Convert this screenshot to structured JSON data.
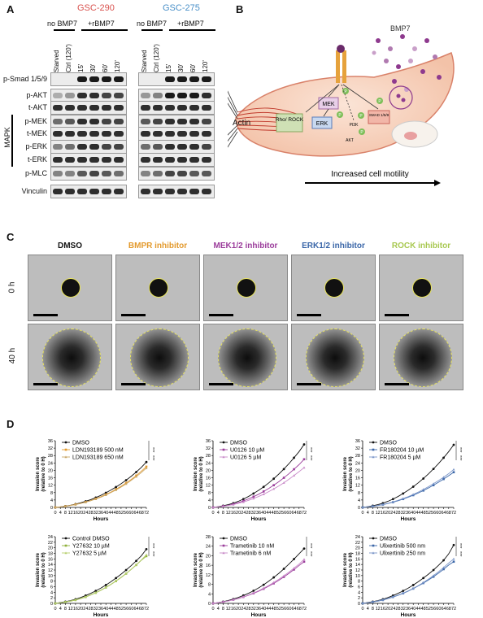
{
  "panels": {
    "a": "A",
    "b": "B",
    "c": "C",
    "d": "D"
  },
  "blot": {
    "cell_lines": [
      {
        "name": "GSC-290",
        "color": "#d9534f"
      },
      {
        "name": "GSC-275",
        "color": "#4a90c8"
      }
    ],
    "group_no": "no BMP7",
    "group_plus": "+rBMP7",
    "lanes": [
      "Starved",
      "Ctrl (120')",
      "15'",
      "30'",
      "60'",
      "120'"
    ],
    "rows": [
      "p-Smad 1/5/9",
      "p-AKT",
      "t-AKT",
      "p-MEK",
      "t-MEK",
      "p-ERK",
      "t-ERK",
      "p-MLC",
      "Vinculin"
    ],
    "mapk_label": "MAPK"
  },
  "schematic": {
    "ligand": "BMP7",
    "actin": "Actin",
    "rho": "Rho/ ROCK",
    "mek": "MEK",
    "erk": "ERK",
    "pi3k": "PI3K",
    "akt": "AKT",
    "smad": "SMAD 1/5/9",
    "p": "P",
    "caption": "Increased cell motility"
  },
  "spheroid": {
    "conditions": [
      {
        "name": "DMSO",
        "color": "#111111"
      },
      {
        "name": "BMPR inhibitor",
        "color": "#e39a2d"
      },
      {
        "name": "MEK1/2 inhibitor",
        "color": "#9b3d9b"
      },
      {
        "name": "ERK1/2 inhibitor",
        "color": "#3a66a8"
      },
      {
        "name": "ROCK inhibitor",
        "color": "#a8c850"
      }
    ],
    "times": [
      "0 h",
      "40 h"
    ]
  },
  "chart_data": [
    {
      "type": "line",
      "ylabel": "Invasion score (relative to 0 H)",
      "xlabel": "Hours",
      "ylim": [
        0,
        36
      ],
      "yticks": [
        0,
        4,
        8,
        12,
        16,
        20,
        24,
        28,
        32,
        36
      ],
      "x": [
        0,
        4,
        8,
        12,
        16,
        20,
        24,
        28,
        32,
        36,
        40,
        44,
        48,
        52,
        56,
        60,
        64,
        68,
        72
      ],
      "series": [
        {
          "name": "DMSO",
          "color": "#111111",
          "marker": "circle",
          "values": [
            0,
            0.3,
            0.7,
            1.2,
            1.8,
            2.5,
            3.3,
            4.2,
            5.3,
            6.5,
            7.9,
            9.4,
            11,
            12.8,
            14.7,
            16.8,
            19.1,
            21.6,
            24.5
          ]
        },
        {
          "name": "LDN193189 500 nM",
          "color": "#e39a2d",
          "marker": "square",
          "values": [
            0,
            0.3,
            0.6,
            1.1,
            1.6,
            2.2,
            2.9,
            3.7,
            4.7,
            5.8,
            7,
            8.3,
            9.8,
            11.4,
            13.2,
            15.1,
            17.2,
            19.5,
            22
          ]
        },
        {
          "name": "LDN193189 650 nM",
          "color": "#c9a86a",
          "marker": "triangle",
          "values": [
            0,
            0.3,
            0.6,
            1,
            1.5,
            2.1,
            2.8,
            3.6,
            4.5,
            5.5,
            6.7,
            8,
            9.4,
            11,
            12.7,
            14.6,
            16.6,
            18.8,
            21.2
          ]
        }
      ],
      "significance": [
        "***",
        "***"
      ]
    },
    {
      "type": "line",
      "ylabel": "Invasion score (relative to 0 H)",
      "xlabel": "Hours",
      "ylim": [
        0,
        36
      ],
      "yticks": [
        0,
        4,
        8,
        12,
        16,
        20,
        24,
        28,
        32,
        36
      ],
      "x": [
        0,
        4,
        8,
        12,
        16,
        20,
        24,
        28,
        32,
        36,
        40,
        44,
        48,
        52,
        56,
        60,
        64,
        68,
        72
      ],
      "series": [
        {
          "name": "DMSO",
          "color": "#111111",
          "marker": "circle",
          "values": [
            0,
            0.4,
            0.9,
            1.5,
            2.3,
            3.3,
            4.5,
            5.9,
            7.5,
            9.2,
            11.1,
            13.2,
            15.5,
            18,
            20.7,
            23.6,
            26.8,
            30.1,
            34
          ]
        },
        {
          "name": "U0126 10 µM",
          "color": "#9b3d9b",
          "marker": "square",
          "values": [
            0,
            0.3,
            0.7,
            1.2,
            1.8,
            2.6,
            3.5,
            4.6,
            5.8,
            7.1,
            8.6,
            10.2,
            12,
            13.9,
            16,
            18.2,
            20.6,
            23.1,
            26
          ]
        },
        {
          "name": "U0126 5 µM",
          "color": "#c98ac9",
          "marker": "triangle",
          "values": [
            0,
            0.3,
            0.6,
            1,
            1.5,
            2.2,
            2.9,
            3.8,
            4.8,
            5.9,
            7.1,
            8.5,
            10,
            11.6,
            13.3,
            15.2,
            17.2,
            19.3,
            21.5
          ]
        }
      ],
      "significance": [
        "***",
        "***"
      ]
    },
    {
      "type": "line",
      "ylabel": "Invasion score (relative to 0 H)",
      "xlabel": "Hours",
      "ylim": [
        0,
        36
      ],
      "yticks": [
        0,
        4,
        8,
        12,
        16,
        20,
        24,
        28,
        32,
        36
      ],
      "x": [
        0,
        4,
        8,
        12,
        16,
        20,
        24,
        28,
        32,
        36,
        40,
        44,
        48,
        52,
        56,
        60,
        64,
        68,
        72
      ],
      "series": [
        {
          "name": "DMSO",
          "color": "#111111",
          "marker": "circle",
          "values": [
            0,
            0.4,
            0.9,
            1.5,
            2.3,
            3.3,
            4.5,
            5.9,
            7.5,
            9.3,
            11.2,
            13.3,
            15.6,
            18.1,
            20.8,
            23.7,
            26.8,
            30.1,
            33.8
          ]
        },
        {
          "name": "FR180204 10 µM",
          "color": "#3a66a8",
          "marker": "square",
          "values": [
            0,
            0.3,
            0.6,
            1,
            1.5,
            2.1,
            2.8,
            3.6,
            4.5,
            5.5,
            6.6,
            7.8,
            9.1,
            10.5,
            12,
            13.6,
            15.3,
            17.1,
            19
          ]
        },
        {
          "name": "FR180204 5 µM",
          "color": "#7a95c8",
          "marker": "triangle",
          "values": [
            0,
            0.3,
            0.6,
            1.1,
            1.6,
            2.2,
            3,
            3.8,
            4.8,
            5.8,
            7,
            8.3,
            9.7,
            11.2,
            12.8,
            14.5,
            16.3,
            18.2,
            20.5
          ]
        }
      ],
      "significance": [
        "***",
        "***"
      ]
    },
    {
      "type": "line",
      "ylabel": "Invasion score (relative to 0 H)",
      "xlabel": "Hours",
      "ylim": [
        0,
        24
      ],
      "yticks": [
        0,
        2,
        4,
        6,
        8,
        10,
        12,
        14,
        16,
        18,
        20,
        22,
        24
      ],
      "x": [
        0,
        4,
        8,
        12,
        16,
        20,
        24,
        28,
        32,
        36,
        40,
        44,
        48,
        52,
        56,
        60,
        64,
        68,
        72
      ],
      "series": [
        {
          "name": "Control DMSO",
          "color": "#111111",
          "marker": "circle",
          "values": [
            0,
            0.3,
            0.6,
            1,
            1.5,
            2.1,
            2.8,
            3.6,
            4.5,
            5.5,
            6.6,
            7.8,
            9.1,
            10.5,
            12,
            13.6,
            15.3,
            17.1,
            19.5
          ]
        },
        {
          "name": "Y27632 10 µM",
          "color": "#8fb03a",
          "marker": "square",
          "values": [
            0,
            0.2,
            0.5,
            0.8,
            1.2,
            1.7,
            2.3,
            3,
            3.8,
            4.7,
            5.7,
            6.8,
            8,
            9.3,
            10.7,
            12.2,
            13.8,
            15.5,
            17
          ]
        },
        {
          "name": "Y27632 5 µM",
          "color": "#b8d070",
          "marker": "triangle",
          "values": [
            0,
            0.2,
            0.5,
            0.9,
            1.3,
            1.8,
            2.4,
            3.1,
            3.9,
            4.8,
            5.8,
            6.9,
            8.1,
            9.4,
            10.8,
            12.3,
            13.9,
            15.6,
            17.5
          ]
        }
      ],
      "significance": [
        "***",
        "***"
      ]
    },
    {
      "type": "line",
      "ylabel": "Invasion score (relative to 0 H)",
      "xlabel": "Hours",
      "ylim": [
        0,
        28
      ],
      "yticks": [
        0,
        4,
        8,
        12,
        16,
        20,
        24,
        28
      ],
      "x": [
        0,
        4,
        8,
        12,
        16,
        20,
        24,
        28,
        32,
        36,
        40,
        44,
        48,
        52,
        56,
        60,
        64,
        68,
        72
      ],
      "series": [
        {
          "name": "DMSO",
          "color": "#111111",
          "marker": "circle",
          "values": [
            0,
            0.3,
            0.7,
            1.2,
            1.8,
            2.5,
            3.3,
            4.2,
            5.3,
            6.5,
            7.8,
            9.3,
            10.9,
            12.6,
            14.5,
            16.5,
            18.6,
            20.8,
            23
          ]
        },
        {
          "name": "Trametinib 10 nM",
          "color": "#9b3d9b",
          "marker": "square",
          "values": [
            0,
            0.3,
            0.6,
            1,
            1.5,
            2,
            2.7,
            3.4,
            4.2,
            5.1,
            6.1,
            7.2,
            8.4,
            9.7,
            11.1,
            12.6,
            14.2,
            15.9,
            17.5
          ]
        },
        {
          "name": "Trametinib 6 nM",
          "color": "#c98ac9",
          "marker": "triangle",
          "values": [
            0,
            0.3,
            0.6,
            1,
            1.5,
            2.1,
            2.8,
            3.5,
            4.4,
            5.3,
            6.4,
            7.5,
            8.8,
            10.1,
            11.6,
            13.1,
            14.8,
            16.5,
            18.5
          ]
        }
      ],
      "significance": [
        "***",
        "***"
      ]
    },
    {
      "type": "line",
      "ylabel": "Invasion score (relative to 0 H)",
      "xlabel": "Hours",
      "ylim": [
        0,
        24
      ],
      "yticks": [
        0,
        2,
        4,
        6,
        8,
        10,
        12,
        14,
        16,
        18,
        20,
        22,
        24
      ],
      "x": [
        0,
        4,
        8,
        12,
        16,
        20,
        24,
        28,
        32,
        36,
        40,
        44,
        48,
        52,
        56,
        60,
        64,
        68,
        72
      ],
      "series": [
        {
          "name": "DMSO",
          "color": "#111111",
          "marker": "circle",
          "values": [
            0,
            0.3,
            0.6,
            1,
            1.5,
            2.1,
            2.8,
            3.6,
            4.5,
            5.5,
            6.6,
            7.8,
            9.1,
            10.5,
            12,
            13.7,
            15.5,
            17.8,
            21
          ]
        },
        {
          "name": "Ulixertinib 500 nm",
          "color": "#3a66a8",
          "marker": "square",
          "values": [
            0,
            0.2,
            0.5,
            0.8,
            1.2,
            1.7,
            2.3,
            2.9,
            3.6,
            4.4,
            5.3,
            6.3,
            7.3,
            8.4,
            9.6,
            10.9,
            12.3,
            13.8,
            15
          ]
        },
        {
          "name": "Ulixertinib 250 nm",
          "color": "#7a95c8",
          "marker": "triangle",
          "values": [
            0,
            0.2,
            0.5,
            0.9,
            1.3,
            1.8,
            2.4,
            3,
            3.7,
            4.5,
            5.4,
            6.4,
            7.5,
            8.7,
            10,
            11.4,
            12.9,
            14.5,
            16
          ]
        }
      ],
      "significance": [
        "***",
        "***"
      ]
    }
  ]
}
